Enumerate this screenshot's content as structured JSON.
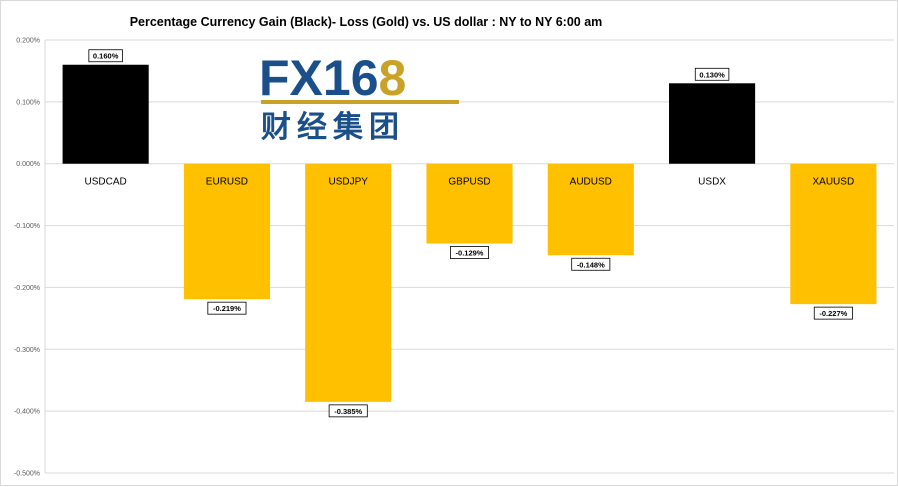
{
  "chart_data": {
    "type": "bar",
    "title": "Percentage Currency  Gain (Black)- Loss (Gold)  vs. US dollar :  NY  to  NY 6:00 am",
    "categories": [
      "USDCAD",
      "EURUSD",
      "USDJPY",
      "GBPUSD",
      "AUDUSD",
      "USDX",
      "XAUUSD"
    ],
    "values": [
      0.16,
      -0.219,
      -0.385,
      -0.129,
      -0.148,
      0.13,
      -0.227
    ],
    "data_labels": [
      "0.160%",
      "-0.219%",
      "-0.385%",
      "-0.129%",
      "-0.148%",
      "0.130%",
      "-0.227%"
    ],
    "ylim": [
      -0.5,
      0.2
    ],
    "yticks": [
      0.2,
      0.1,
      0.0,
      -0.1,
      -0.2,
      -0.3,
      -0.4,
      -0.5
    ],
    "ytick_labels": [
      "0.200%",
      "0.100%",
      "0.000%",
      "-0.100%",
      "-0.200%",
      "-0.300%",
      "-0.400%",
      "-0.500%"
    ],
    "grid": true,
    "colors": {
      "gain": "#000000",
      "loss": "#FFC000",
      "grid": "#d9d9d9"
    }
  },
  "watermark": {
    "brand": "FX168",
    "subtitle": "财经集团",
    "colors": {
      "blue": "#1b4f8a",
      "gold": "#c9a227"
    }
  }
}
